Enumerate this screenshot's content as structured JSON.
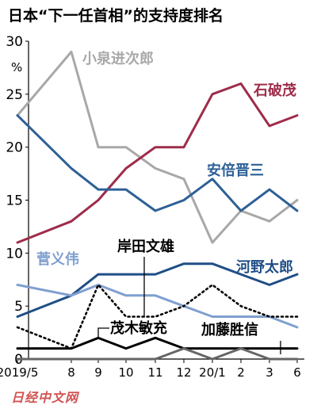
{
  "chart_data": {
    "type": "line",
    "title": "日本“下一任首相”的支持度排名",
    "ylabel": "%",
    "ylim": [
      0,
      30
    ],
    "yticks": [
      0,
      5,
      10,
      15,
      20,
      25,
      30
    ],
    "categories": [
      "2019/5",
      "8",
      "9",
      "10",
      "11",
      "12",
      "20/1",
      "2",
      "3",
      "6"
    ],
    "series": [
      {
        "name": "小泉进次郎",
        "color": "#a8a8a8",
        "dash": "solid",
        "values": [
          23,
          29,
          20,
          20,
          18,
          17,
          11,
          14,
          13,
          15
        ]
      },
      {
        "name": "石破茂",
        "color": "#9e2c4a",
        "dash": "solid",
        "values": [
          11,
          13,
          15,
          18,
          20,
          20,
          25,
          26,
          22,
          23
        ]
      },
      {
        "name": "安倍晋三",
        "color": "#2d6096",
        "dash": "solid",
        "values": [
          23,
          18,
          16,
          16,
          14,
          15,
          17,
          14,
          16,
          14
        ]
      },
      {
        "name": "河野太郎",
        "color": "#1f4e86",
        "dash": "solid",
        "values": [
          4,
          6,
          8,
          8,
          8,
          9,
          9,
          8,
          7,
          8
        ]
      },
      {
        "name": "菅义伟",
        "color": "#7f9fcf",
        "dash": "solid",
        "values": [
          7,
          6,
          7,
          6,
          6,
          5,
          4,
          4,
          4,
          3
        ]
      },
      {
        "name": "岸田文雄",
        "color": "#000000",
        "dash": "dotted",
        "values": [
          3,
          1,
          7,
          4,
          4,
          5,
          7,
          5,
          4,
          4
        ]
      },
      {
        "name": "茂木敏充",
        "color": "#000000",
        "dash": "solid",
        "values": [
          1,
          1,
          2,
          1,
          2,
          1,
          1,
          1,
          1,
          1
        ]
      },
      {
        "name": "加藤胜信",
        "color": "#666666",
        "dash": "solid",
        "values": [
          0,
          0,
          0,
          0,
          0,
          1,
          0,
          1,
          0,
          0
        ]
      }
    ],
    "legend": "inline labels next to lines",
    "grid": false
  },
  "watermark": "日经中文网"
}
